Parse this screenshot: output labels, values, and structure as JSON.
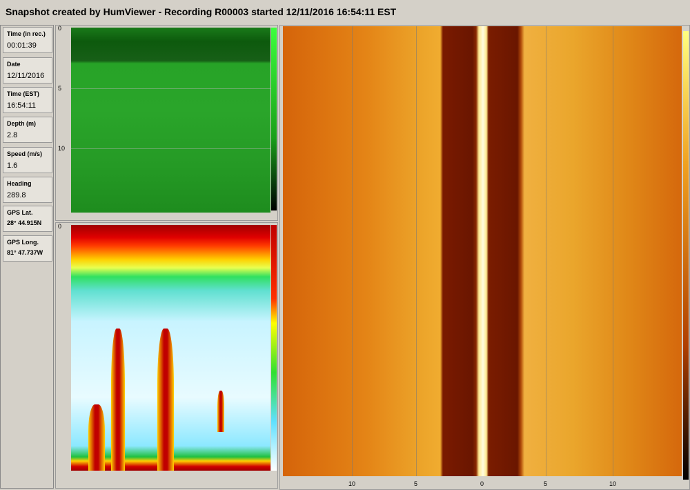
{
  "header": {
    "title": "Snapshot created by HumViewer - Recording R00003 started 12/11/2016 16:54:11 EST"
  },
  "fields": [
    {
      "label": "Time (in rec.)",
      "value": "00:01:39"
    },
    {
      "label": "Date",
      "value": "12/11/2016"
    },
    {
      "label": "Time (EST)",
      "value": "16:54:11"
    },
    {
      "label": "Depth (m)",
      "value": "2.8"
    },
    {
      "label": "Speed (m/s)",
      "value": "1.6"
    },
    {
      "label": "Heading",
      "value": "289.8"
    },
    {
      "label": "GPS Lat.",
      "value": "28° 44.915N"
    },
    {
      "label": "GPS Long.",
      "value": "81° 47.737W"
    }
  ],
  "down_imaging": {
    "depth_labels": [
      0,
      5,
      10
    ]
  },
  "sonar_2d": {
    "depth_labels": [
      0
    ]
  },
  "side_scan": {
    "range_labels": [
      10,
      5,
      0,
      5,
      10
    ]
  }
}
